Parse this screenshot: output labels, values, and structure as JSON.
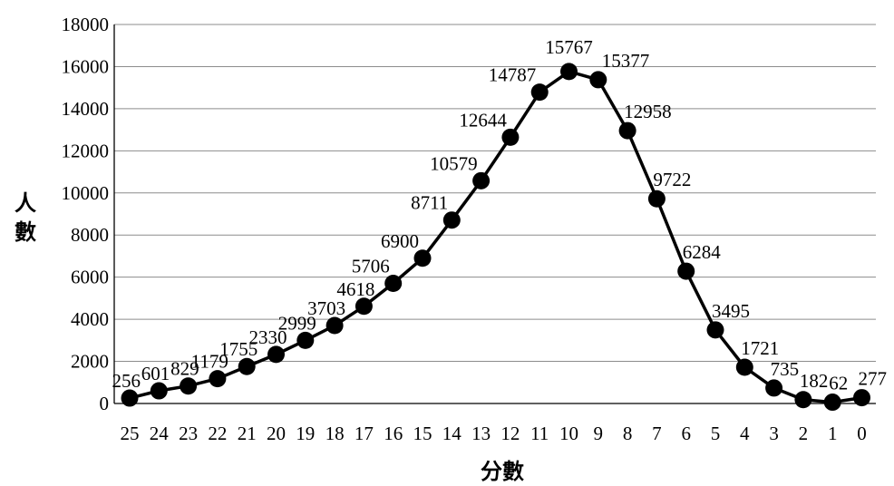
{
  "chart_data": {
    "type": "line",
    "title": "",
    "xlabel": "分數",
    "ylabel": "人數",
    "ylim": [
      0,
      18000
    ],
    "y_ticks": [
      "0",
      "2000",
      "4000",
      "6000",
      "8000",
      "10000",
      "12000",
      "14000",
      "16000",
      "18000"
    ],
    "categories": [
      "25",
      "24",
      "23",
      "22",
      "21",
      "20",
      "19",
      "18",
      "17",
      "16",
      "15",
      "14",
      "13",
      "12",
      "11",
      "10",
      "9",
      "8",
      "7",
      "6",
      "5",
      "4",
      "3",
      "2",
      "1",
      "0"
    ],
    "series": [
      {
        "values": [
          256,
          601,
          829,
          1179,
          1755,
          2330,
          2999,
          3703,
          4618,
          5706,
          6900,
          8711,
          10579,
          12644,
          14787,
          15767,
          15377,
          12958,
          9722,
          6284,
          3495,
          1721,
          735,
          182,
          62,
          277
        ]
      }
    ],
    "grid": "horizontal",
    "legend": "none",
    "line_color": "#000000",
    "grid_color": "#8c8c8c"
  }
}
